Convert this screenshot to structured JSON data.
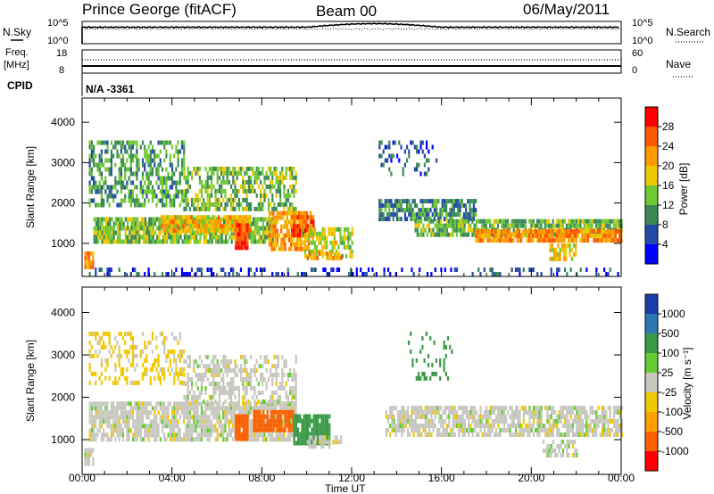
{
  "header": {
    "station": "Prince George (fitACF)",
    "beam": "Beam 00",
    "date": "06/May/2011"
  },
  "top_panels": {
    "nsky_label": "N.Sky",
    "nsearch_label": "N.Search",
    "nsky_ticks": [
      "10^5",
      "10^0"
    ],
    "nsearch_ticks": [
      "10^5",
      "10^0"
    ],
    "freq_label": "Freq.",
    "freq_unit": "[MHz]",
    "freq_ticks": [
      "18",
      "8"
    ],
    "nave_label": "Nave",
    "nave_ticks": [
      "60",
      "0"
    ],
    "cpid_label": "CPID",
    "cpid_value": "N/A -3361"
  },
  "chart_data": [
    {
      "type": "heatmap",
      "name": "power",
      "ylabel": "Slant Range [km]",
      "xlabel": "Time UT",
      "x_ticks": [
        "00:00",
        "04:00",
        "08:00",
        "12:00",
        "16:00",
        "20:00",
        "00:00"
      ],
      "y_ticks": [
        1000,
        2000,
        3000,
        4000
      ],
      "ylim": [
        180,
        4600
      ],
      "xlim_hours": [
        0,
        24
      ],
      "colorbar_label": "Power [dB]",
      "colorbar_ticks": [
        28,
        24,
        20,
        16,
        12,
        8,
        4
      ],
      "colorbar_colors": [
        "#ff0000",
        "#ff5a00",
        "#ff9b00",
        "#f0c800",
        "#70c832",
        "#3a8a58",
        "#244aa8",
        "#0000ff"
      ]
    },
    {
      "type": "heatmap",
      "name": "velocity",
      "ylabel": "Slant Range [km]",
      "xlabel": "Time UT",
      "x_ticks": [
        "00:00",
        "04:00",
        "08:00",
        "12:00",
        "16:00",
        "20:00",
        "00:00"
      ],
      "y_ticks": [
        1000,
        2000,
        3000,
        4000
      ],
      "ylim": [
        180,
        4600
      ],
      "xlim_hours": [
        0,
        24
      ],
      "colorbar_label": "Velocity [m s⁻¹]",
      "colorbar_ticks": [
        1000,
        500,
        100,
        25,
        -25,
        -100,
        -500,
        -1000
      ],
      "colorbar_colors": [
        "#1a3ca8",
        "#2d78b4",
        "#3a9a48",
        "#66cc33",
        "#c8c8c0",
        "#f0c800",
        "#ffa000",
        "#ff6000",
        "#ff0000"
      ]
    }
  ],
  "x_axis": {
    "ticks": [
      "00:00",
      "04:00",
      "08:00",
      "12:00",
      "16:00",
      "20:00",
      "00:00"
    ],
    "label": "Time UT"
  }
}
